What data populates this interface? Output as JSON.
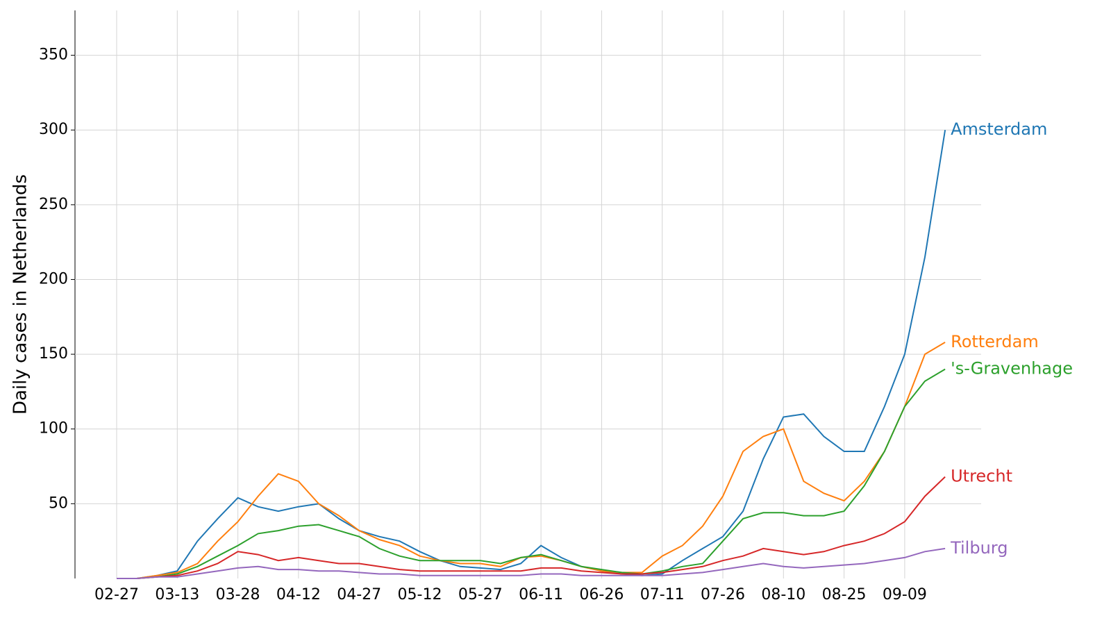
{
  "chart_data": {
    "type": "line",
    "y_label": "Daily cases in Netherlands",
    "categories": [
      "02-27",
      null,
      null,
      "03-13",
      null,
      null,
      "03-28",
      null,
      null,
      "04-12",
      null,
      null,
      "04-27",
      null,
      null,
      "05-12",
      null,
      null,
      "05-27",
      null,
      null,
      "06-11",
      null,
      null,
      "06-26",
      null,
      null,
      "07-11",
      null,
      null,
      "07-26",
      null,
      null,
      "08-10",
      null,
      null,
      "08-25",
      null,
      null,
      "09-09",
      null,
      null
    ],
    "ylim": [
      0,
      380
    ],
    "yticks": [
      50,
      100,
      150,
      200,
      250,
      300,
      350
    ],
    "grid": true,
    "series": [
      {
        "name": "Amsterdam",
        "color": "#1f77b4",
        "values": [
          0,
          0,
          2,
          5,
          25,
          40,
          54,
          48,
          45,
          48,
          50,
          40,
          32,
          28,
          25,
          18,
          12,
          8,
          7,
          6,
          10,
          22,
          14,
          8,
          5,
          3,
          2,
          3,
          12,
          20,
          28,
          45,
          80,
          108,
          110,
          95,
          85,
          85,
          115,
          150,
          215,
          300
        ]
      },
      {
        "name": "Rotterdam",
        "color": "#ff7f0e",
        "values": [
          0,
          0,
          2,
          4,
          10,
          25,
          38,
          55,
          70,
          65,
          50,
          42,
          32,
          26,
          22,
          15,
          12,
          10,
          10,
          8,
          14,
          15,
          12,
          8,
          5,
          4,
          4,
          15,
          22,
          35,
          55,
          85,
          95,
          100,
          65,
          57,
          52,
          65,
          85,
          115,
          150,
          158
        ]
      },
      {
        "name": "'s-Gravenhage",
        "color": "#2ca02c",
        "values": [
          0,
          0,
          1,
          3,
          8,
          15,
          22,
          30,
          32,
          35,
          36,
          32,
          28,
          20,
          15,
          12,
          12,
          12,
          12,
          10,
          14,
          16,
          12,
          8,
          6,
          4,
          3,
          5,
          8,
          10,
          25,
          40,
          44,
          44,
          42,
          42,
          45,
          62,
          85,
          115,
          132,
          140
        ]
      },
      {
        "name": "Utrecht",
        "color": "#d62728",
        "values": [
          0,
          0,
          1,
          2,
          5,
          10,
          18,
          16,
          12,
          14,
          12,
          10,
          10,
          8,
          6,
          5,
          5,
          5,
          5,
          5,
          5,
          7,
          7,
          5,
          4,
          3,
          3,
          4,
          6,
          8,
          12,
          15,
          20,
          18,
          16,
          18,
          22,
          25,
          30,
          38,
          55,
          68
        ]
      },
      {
        "name": "Tilburg",
        "color": "#9467bd",
        "values": [
          0,
          0,
          1,
          1,
          3,
          5,
          7,
          8,
          6,
          6,
          5,
          5,
          4,
          3,
          3,
          2,
          2,
          2,
          2,
          2,
          2,
          3,
          3,
          2,
          2,
          2,
          2,
          2,
          3,
          4,
          6,
          8,
          10,
          8,
          7,
          8,
          9,
          10,
          12,
          14,
          18,
          20
        ]
      }
    ]
  }
}
